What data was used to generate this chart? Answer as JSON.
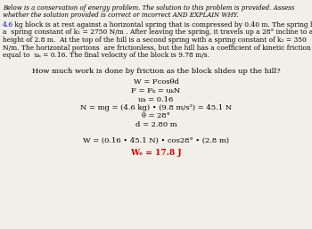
{
  "bg_color": "#f0f0e8",
  "text_color": "#000000",
  "red_color": "#cc0000",
  "blue_color": "#0000cc",
  "orange_color": "#cc4400",
  "header_line1": "Below is a conservation of energy problem. The solution to this problem is provided. Assess",
  "header_line2": "whether the solution provided is correct or incorrect AND EXPLAIN WHY.",
  "body_line1_blue": "4.6",
  "body_line1_rest": " kg block is at rest against a horizontal spring that is compressed by 0.40 m. The spring has",
  "body_line2": "a  spring constant of k₁ = 2750 N/m . After leaving the spring, it travels up a 28° incline to a",
  "body_line3": "height of 2.8 m.  At the top of the hill is a second spring with a spring constant of k₂ = 350",
  "body_line4": "N/m. The horizontal portions  are frictionless, but the hill has a coefficient of kinetic friction",
  "body_line5": "equal to  uₖ = 0.16. The final velocity of the block is 9.78 m/s.",
  "question": "How much work is done by friction as the block slides up the hill?",
  "eq1": "W = Fcosθd",
  "eq2": "F = Fₖ = uₖN",
  "eq3": "uₖ = 0.16",
  "eq4": "N = mg = (4.6 kg) • (9.8 m/s²) = 45.1 N",
  "eq5": "θ = 28°",
  "eq6": "d = 2.80 m",
  "eq7_prefix": "W = (0.16 • 45.1 N) • ",
  "eq7_underline": "cos28°",
  "eq7_suffix": " • (2.8 m)",
  "eq8": "Wₑ = 17.8 J"
}
